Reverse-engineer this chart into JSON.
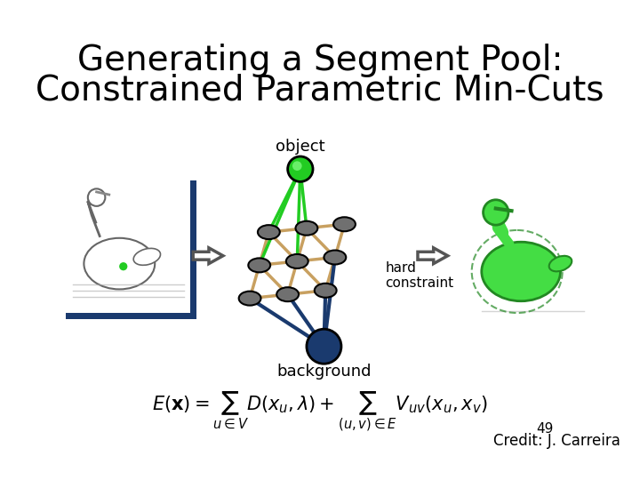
{
  "title_line1": "Generating a Segment Pool:",
  "title_line2": "Constrained Parametric Min-Cuts",
  "title_fontsize": 28,
  "bg_color": "#ffffff",
  "credit_text": "Credit: J. Carreira",
  "slide_number": "49",
  "object_label": "object",
  "background_label": "background",
  "hard_constraint_label": "hard\nconstraint",
  "formula": "$E(\\mathbf{x}) = \\sum_{u \\in V} D(x_u, \\lambda) + \\sum_{(u,v) \\in E} V_{uv}(x_u, x_v)$",
  "node_color_gray": "#707070",
  "node_color_green": "#22cc22",
  "node_color_bg": "#1a3a6e",
  "edge_color_grid": "#c8a060",
  "edge_color_green": "#22cc22",
  "edge_color_bg": "#1a3a6e",
  "arrow_color": "#555555",
  "swan_box_color": "#1a3a6e",
  "swan_mark_color": "#22cc22"
}
